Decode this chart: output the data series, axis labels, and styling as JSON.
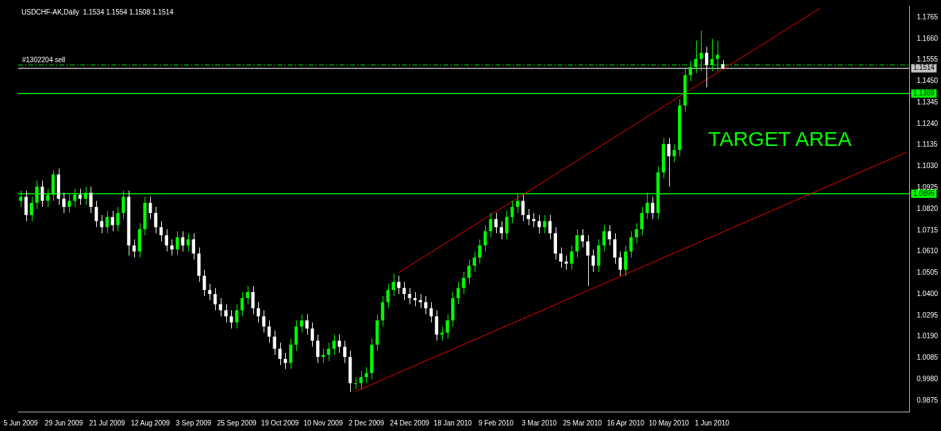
{
  "chart_data": {
    "type": "candlestick",
    "title": "USDCHF-AK,Daily  1.1534 1.1554 1.1508 1.1514",
    "categories": [
      "5 Jun 2009",
      null,
      null,
      null,
      null,
      null,
      null,
      null,
      "29 Jun 2009",
      null,
      null,
      null,
      null,
      null,
      null,
      null,
      "21 Jul 2009",
      null,
      null,
      null,
      null,
      null,
      null,
      null,
      "12 Aug 2009",
      null,
      null,
      null,
      null,
      null,
      null,
      null,
      "3 Sep 2009",
      null,
      null,
      null,
      null,
      null,
      null,
      null,
      "25 Sep 2009",
      null,
      null,
      null,
      null,
      null,
      null,
      null,
      "19 Oct 2009",
      null,
      null,
      null,
      null,
      null,
      null,
      null,
      "10 Nov 2009",
      null,
      null,
      null,
      null,
      null,
      null,
      null,
      "2 Dec 2009",
      null,
      null,
      null,
      null,
      null,
      null,
      null,
      "24 Dec 2009",
      null,
      null,
      null,
      null,
      null,
      null,
      null,
      "18 Jan 2010",
      null,
      null,
      null,
      null,
      null,
      null,
      null,
      "9 Feb 2010",
      null,
      null,
      null,
      null,
      null,
      null,
      null,
      "3 Mar 2010",
      null,
      null,
      null,
      null,
      null,
      null,
      null,
      "25 Mar 2010",
      null,
      null,
      null,
      null,
      null,
      null,
      null,
      "16 Apr 2010",
      null,
      null,
      null,
      null,
      null,
      null,
      null,
      "10 May 2010",
      null,
      null,
      null,
      null,
      null,
      null,
      null,
      "1 Jun 2010",
      null,
      null,
      null,
      null,
      null,
      null,
      null,
      null,
      null,
      null,
      null,
      null,
      null,
      null,
      null,
      null,
      null,
      null,
      null,
      null,
      null,
      null,
      null,
      null,
      null,
      null,
      null,
      null,
      null,
      null,
      null,
      null,
      null,
      null,
      null,
      null
    ],
    "ohlc": [
      [
        1.086,
        1.091,
        1.083,
        1.088
      ],
      [
        1.088,
        1.091,
        1.076,
        1.079
      ],
      [
        1.079,
        1.088,
        1.076,
        1.085
      ],
      [
        1.085,
        1.096,
        1.082,
        1.093
      ],
      [
        1.093,
        1.096,
        1.083,
        1.086
      ],
      [
        1.086,
        1.092,
        1.083,
        1.089
      ],
      [
        1.089,
        1.101,
        1.086,
        1.099
      ],
      [
        1.099,
        1.102,
        1.084,
        1.087
      ],
      [
        1.087,
        1.09,
        1.08,
        1.083
      ],
      [
        1.083,
        1.089,
        1.08,
        1.086
      ],
      [
        1.086,
        1.092,
        1.083,
        1.089
      ],
      [
        1.089,
        1.092,
        1.084,
        1.087
      ],
      [
        1.087,
        1.093,
        1.084,
        1.09
      ],
      [
        1.09,
        1.093,
        1.08,
        1.083
      ],
      [
        1.083,
        1.086,
        1.073,
        1.076
      ],
      [
        1.076,
        1.079,
        1.07,
        1.073
      ],
      [
        1.073,
        1.081,
        1.07,
        1.078
      ],
      [
        1.078,
        1.081,
        1.071,
        1.074
      ],
      [
        1.074,
        1.083,
        1.071,
        1.08
      ],
      [
        1.08,
        1.091,
        1.077,
        1.088
      ],
      [
        1.088,
        1.091,
        1.059,
        1.064
      ],
      [
        1.064,
        1.067,
        1.058,
        1.061
      ],
      [
        1.061,
        1.075,
        1.058,
        1.072
      ],
      [
        1.072,
        1.088,
        1.069,
        1.085
      ],
      [
        1.085,
        1.088,
        1.077,
        1.08
      ],
      [
        1.08,
        1.083,
        1.07,
        1.073
      ],
      [
        1.073,
        1.076,
        1.066,
        1.069
      ],
      [
        1.069,
        1.072,
        1.061,
        1.064
      ],
      [
        1.064,
        1.067,
        1.059,
        1.062
      ],
      [
        1.062,
        1.071,
        1.059,
        1.068
      ],
      [
        1.068,
        1.071,
        1.061,
        1.064
      ],
      [
        1.064,
        1.07,
        1.061,
        1.067
      ],
      [
        1.067,
        1.07,
        1.057,
        1.06
      ],
      [
        1.06,
        1.063,
        1.046,
        1.049
      ],
      [
        1.049,
        1.052,
        1.039,
        1.042
      ],
      [
        1.042,
        1.045,
        1.037,
        1.04
      ],
      [
        1.04,
        1.043,
        1.032,
        1.035
      ],
      [
        1.035,
        1.038,
        1.029,
        1.032
      ],
      [
        1.032,
        1.035,
        1.026,
        1.029
      ],
      [
        1.029,
        1.032,
        1.023,
        1.026
      ],
      [
        1.026,
        1.035,
        1.023,
        1.032
      ],
      [
        1.032,
        1.041,
        1.029,
        1.038
      ],
      [
        1.038,
        1.044,
        1.035,
        1.041
      ],
      [
        1.041,
        1.044,
        1.03,
        1.033
      ],
      [
        1.033,
        1.036,
        1.026,
        1.029
      ],
      [
        1.029,
        1.032,
        1.021,
        1.024
      ],
      [
        1.024,
        1.027,
        1.016,
        1.019
      ],
      [
        1.019,
        1.022,
        1.01,
        1.013
      ],
      [
        1.013,
        1.016,
        1.005,
        1.008
      ],
      [
        1.008,
        1.011,
        1.003,
        1.006
      ],
      [
        1.006,
        1.018,
        1.003,
        1.015
      ],
      [
        1.015,
        1.027,
        1.012,
        1.024
      ],
      [
        1.024,
        1.03,
        1.021,
        1.027
      ],
      [
        1.027,
        1.03,
        1.02,
        1.023
      ],
      [
        1.023,
        1.026,
        1.014,
        1.017
      ],
      [
        1.017,
        1.02,
        1.006,
        1.009
      ],
      [
        1.009,
        1.013,
        1.006,
        1.01
      ],
      [
        1.01,
        1.016,
        1.007,
        1.013
      ],
      [
        1.013,
        1.02,
        1.01,
        1.017
      ],
      [
        1.017,
        1.02,
        1.011,
        1.014
      ],
      [
        1.014,
        1.017,
        1.006,
        1.009
      ],
      [
        1.009,
        1.012,
        0.9917,
        0.996
      ],
      [
        0.996,
        0.999,
        0.993,
        0.996
      ],
      [
        0.996,
        1.002,
        0.993,
        0.999
      ],
      [
        0.999,
        1.004,
        0.996,
        1.001
      ],
      [
        1.001,
        1.018,
        0.998,
        1.015
      ],
      [
        1.015,
        1.03,
        1.012,
        1.027
      ],
      [
        1.027,
        1.039,
        1.024,
        1.036
      ],
      [
        1.036,
        1.045,
        1.033,
        1.042
      ],
      [
        1.042,
        1.05,
        1.039,
        1.046
      ],
      [
        1.046,
        1.049,
        1.04,
        1.043
      ],
      [
        1.043,
        1.046,
        1.037,
        1.04
      ],
      [
        1.04,
        1.043,
        1.035,
        1.038
      ],
      [
        1.038,
        1.041,
        1.034,
        1.037
      ],
      [
        1.037,
        1.04,
        1.033,
        1.036
      ],
      [
        1.036,
        1.039,
        1.03,
        1.033
      ],
      [
        1.033,
        1.036,
        1.026,
        1.029
      ],
      [
        1.029,
        1.032,
        1.017,
        1.02
      ],
      [
        1.02,
        1.024,
        1.017,
        1.021
      ],
      [
        1.021,
        1.03,
        1.018,
        1.027
      ],
      [
        1.027,
        1.041,
        1.024,
        1.038
      ],
      [
        1.038,
        1.046,
        1.035,
        1.043
      ],
      [
        1.043,
        1.051,
        1.04,
        1.048
      ],
      [
        1.048,
        1.057,
        1.045,
        1.054
      ],
      [
        1.054,
        1.061,
        1.051,
        1.058
      ],
      [
        1.058,
        1.067,
        1.055,
        1.064
      ],
      [
        1.064,
        1.074,
        1.061,
        1.071
      ],
      [
        1.071,
        1.08,
        1.068,
        1.077
      ],
      [
        1.077,
        1.08,
        1.07,
        1.073
      ],
      [
        1.073,
        1.076,
        1.067,
        1.07
      ],
      [
        1.07,
        1.081,
        1.067,
        1.078
      ],
      [
        1.078,
        1.086,
        1.075,
        1.083
      ],
      [
        1.083,
        1.0895,
        1.08,
        1.086
      ],
      [
        1.086,
        1.089,
        1.076,
        1.079
      ],
      [
        1.079,
        1.082,
        1.074,
        1.077
      ],
      [
        1.077,
        1.08,
        1.073,
        1.076
      ],
      [
        1.076,
        1.079,
        1.07,
        1.073
      ],
      [
        1.073,
        1.079,
        1.07,
        1.076
      ],
      [
        1.076,
        1.079,
        1.067,
        1.07
      ],
      [
        1.07,
        1.073,
        1.057,
        1.06
      ],
      [
        1.06,
        1.063,
        1.053,
        1.056
      ],
      [
        1.056,
        1.059,
        1.052,
        1.055
      ],
      [
        1.055,
        1.064,
        1.052,
        1.061
      ],
      [
        1.061,
        1.072,
        1.058,
        1.069
      ],
      [
        1.069,
        1.072,
        1.063,
        1.066
      ],
      [
        1.066,
        1.069,
        1.044,
        1.059
      ],
      [
        1.059,
        1.062,
        1.051,
        1.054
      ],
      [
        1.054,
        1.067,
        1.051,
        1.064
      ],
      [
        1.064,
        1.074,
        1.061,
        1.071
      ],
      [
        1.071,
        1.074,
        1.064,
        1.067
      ],
      [
        1.067,
        1.07,
        1.055,
        1.058
      ],
      [
        1.058,
        1.061,
        1.049,
        1.052
      ],
      [
        1.052,
        1.064,
        1.049,
        1.061
      ],
      [
        1.061,
        1.071,
        1.058,
        1.068
      ],
      [
        1.068,
        1.075,
        1.065,
        1.072
      ],
      [
        1.072,
        1.083,
        1.069,
        1.08
      ],
      [
        1.08,
        1.09,
        1.077,
        1.085
      ],
      [
        1.085,
        1.088,
        1.077,
        1.08
      ],
      [
        1.08,
        1.103,
        1.077,
        1.1
      ],
      [
        1.1,
        1.117,
        1.097,
        1.114
      ],
      [
        1.114,
        1.117,
        1.093,
        1.108
      ],
      [
        1.108,
        1.114,
        1.105,
        1.111
      ],
      [
        1.111,
        1.136,
        1.108,
        1.133
      ],
      [
        1.133,
        1.151,
        1.13,
        1.148
      ],
      [
        1.148,
        1.155,
        1.145,
        1.152
      ],
      [
        1.152,
        1.165,
        1.149,
        1.156
      ],
      [
        1.156,
        1.17,
        1.15,
        1.159
      ],
      [
        1.159,
        1.162,
        1.142,
        1.153
      ],
      [
        1.153,
        1.166,
        1.15,
        1.156
      ],
      [
        1.156,
        1.165,
        1.15,
        1.158
      ],
      [
        1.1534,
        1.1554,
        1.1508,
        1.1514
      ],
      null,
      null,
      null,
      null,
      null,
      null,
      null,
      null,
      null,
      null,
      null,
      null,
      null,
      null,
      null,
      null,
      null,
      null,
      null,
      null,
      null,
      null,
      null,
      null,
      null,
      null,
      null,
      null,
      null,
      null,
      null,
      null,
      null,
      null
    ],
    "series": [
      {
        "type": "line",
        "color": "#ff0000",
        "values": [
          null,
          null,
          null,
          null,
          null,
          null,
          null,
          null,
          null,
          null,
          null,
          null,
          null,
          null,
          null,
          null,
          null,
          null,
          null,
          null,
          null,
          null,
          null,
          null,
          null,
          null,
          null,
          null,
          null,
          null,
          null,
          null,
          null,
          null,
          null,
          null,
          null,
          null,
          null,
          null,
          null,
          null,
          null,
          null,
          null,
          null,
          null,
          null,
          null,
          null,
          null,
          null,
          null,
          null,
          null,
          null,
          null,
          null,
          null,
          null,
          null,
          null,
          null,
          null,
          null,
          null,
          null,
          null,
          null,
          null,
          1.0506,
          null,
          null,
          null,
          null,
          null,
          null,
          null,
          null,
          null,
          null,
          null,
          null,
          null,
          null,
          null,
          null,
          null,
          null,
          null,
          null,
          null,
          null,
          null,
          null,
          null,
          null,
          null,
          null,
          null,
          null,
          null,
          null,
          null,
          null,
          null,
          null,
          null,
          null,
          null,
          null,
          null,
          null,
          null,
          null,
          null,
          null,
          null,
          null,
          null,
          null,
          null,
          null,
          null,
          null,
          null,
          null,
          null,
          null,
          null,
          null,
          null,
          null,
          null,
          null,
          null,
          null,
          null,
          null,
          null,
          null,
          null,
          null,
          null,
          null,
          null,
          null,
          null,
          1.181,
          null,
          null,
          null,
          null,
          null,
          null,
          null,
          null,
          null,
          null,
          null,
          null,
          null,
          null,
          null,
          null
        ]
      },
      {
        "type": "line",
        "color": "#ff0000",
        "values": [
          null,
          null,
          null,
          null,
          null,
          null,
          null,
          null,
          null,
          null,
          null,
          null,
          null,
          null,
          null,
          null,
          null,
          null,
          null,
          null,
          null,
          null,
          null,
          null,
          null,
          null,
          null,
          null,
          null,
          null,
          null,
          null,
          null,
          null,
          null,
          null,
          null,
          null,
          null,
          null,
          null,
          null,
          null,
          null,
          null,
          null,
          null,
          null,
          null,
          null,
          null,
          null,
          null,
          null,
          null,
          null,
          null,
          null,
          null,
          null,
          null,
          null,
          0.992,
          null,
          null,
          null,
          null,
          null,
          null,
          null,
          null,
          null,
          null,
          null,
          null,
          null,
          null,
          null,
          null,
          null,
          null,
          null,
          null,
          null,
          null,
          null,
          null,
          null,
          null,
          null,
          null,
          null,
          null,
          null,
          null,
          null,
          null,
          null,
          null,
          null,
          null,
          null,
          null,
          null,
          null,
          null,
          null,
          null,
          null,
          null,
          null,
          null,
          null,
          null,
          null,
          null,
          null,
          null,
          null,
          null,
          null,
          null,
          null,
          null,
          null,
          null,
          null,
          null,
          null,
          null,
          null,
          null,
          null,
          null,
          null,
          null,
          null,
          null,
          null,
          null,
          null,
          null,
          null,
          null,
          null,
          null,
          null,
          null,
          null,
          null,
          null,
          null,
          null,
          null,
          null,
          null,
          null,
          null,
          null,
          null,
          null,
          null,
          null,
          null,
          1.11
        ]
      }
    ],
    "ylim": [
      0.982,
      1.182
    ],
    "yticks": [
      0.9875,
      {
        "value": 0.998,
        "label": "0.9980"
      },
      1.0085,
      {
        "value": 1.019,
        "label": "1.0190"
      },
      1.0295,
      {
        "value": 1.04,
        "label": "1.0400"
      },
      1.0505,
      {
        "value": 1.061,
        "label": "1.0610"
      },
      1.0715,
      {
        "value": 1.082,
        "label": "1.0820"
      },
      1.0925,
      {
        "value": 1.103,
        "label": "1.1030"
      },
      1.1135,
      {
        "value": 1.124,
        "label": "1.1240"
      },
      1.1345,
      {
        "value": 1.145,
        "label": "1.1450"
      },
      1.1555,
      {
        "value": 1.166,
        "label": "1.1660"
      },
      1.1765
    ],
    "ref_lines": [
      {
        "axis": "y",
        "value": 1.153,
        "label": "#1302204 sell",
        "color": "#00ff00",
        "line_style": "dashed"
      },
      {
        "axis": "y",
        "value": 1.1514,
        "label": "1.1514",
        "color": "#c0c0c0",
        "line_style": "solid"
      },
      {
        "axis": "y",
        "value": 1.1389,
        "label": "1.1389",
        "color": "#00ff00",
        "line_style": "solid"
      },
      {
        "axis": "y",
        "value": 1.0895,
        "label": "1.0895",
        "color": "#00ff00",
        "line_style": "solid"
      }
    ],
    "annotations": [
      "TARGET AREA"
    ]
  }
}
